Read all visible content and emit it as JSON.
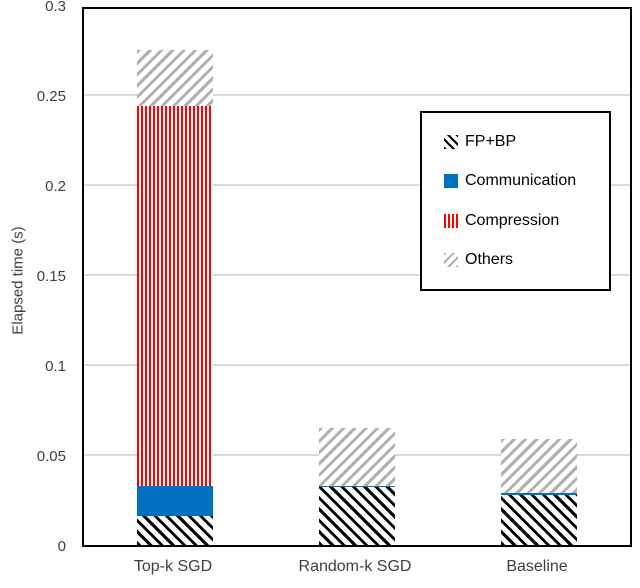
{
  "chart_data": {
    "type": "bar",
    "stacked": true,
    "title": "",
    "xlabel": "",
    "ylabel": "Elapsed time (s)",
    "categories": [
      "Top-k SGD",
      "Random-k SGD",
      "Baseline"
    ],
    "series": [
      {
        "name": "FP+BP",
        "values": [
          0.016,
          0.032,
          0.028
        ],
        "pattern": "diagonal-forward",
        "color": "#000000"
      },
      {
        "name": "Communication",
        "values": [
          0.017,
          0.001,
          0.001
        ],
        "pattern": "solid",
        "color": "#0070c0"
      },
      {
        "name": "Compression",
        "values": [
          0.211,
          0.0,
          0.0
        ],
        "pattern": "vertical",
        "color": "#ff0000"
      },
      {
        "name": "Others",
        "values": [
          0.031,
          0.032,
          0.03
        ],
        "pattern": "diagonal-back",
        "color": "#b0b0b0"
      }
    ],
    "ylim": [
      0,
      0.3
    ],
    "yticks": [
      "0",
      "0.05",
      "0.1",
      "0.15",
      "0.2",
      "0.25",
      "0.3"
    ],
    "ytick_values": [
      0,
      0.05,
      0.1,
      0.15,
      0.2,
      0.25,
      0.3
    ],
    "grid": true,
    "gridline_color": "#d9d9d9",
    "legend_position": "upper-right-inside",
    "plot_border_color": "#000000",
    "background_color": "#ffffff"
  }
}
